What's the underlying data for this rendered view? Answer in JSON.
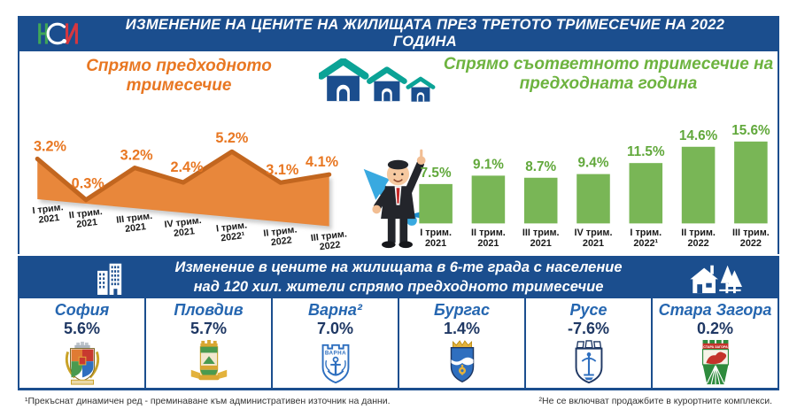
{
  "header": {
    "logo": "НСИ",
    "title": "ИЗМЕНЕНИЕ НА ЦЕНИТЕ НА ЖИЛИЩАТА ПРЕЗ ТРЕТОТО ТРИМЕСЕЧИЕ НА 2022 ГОДИНА"
  },
  "chart_data": [
    {
      "type": "area",
      "title": "Спрямо предходното тримесечие",
      "categories": [
        "I трим. 2021",
        "II трим. 2021",
        "III трим. 2021",
        "IV трим. 2021",
        "I трим. 2022¹",
        "II трим. 2022",
        "III трим. 2022"
      ],
      "values": [
        3.2,
        0.3,
        3.2,
        2.4,
        5.2,
        3.1,
        4.1
      ],
      "unit": "%",
      "ylim": [
        0,
        6
      ],
      "grid": false,
      "legend": false,
      "color": "#E8873B",
      "line_color": "#C2661F",
      "label_color": "#E87722",
      "title_color": "#E87722"
    },
    {
      "type": "bar",
      "title": "Спрямо съответното тримесечие на предходната година",
      "categories": [
        "I трим. 2021",
        "II трим. 2021",
        "III трим. 2021",
        "IV трим. 2021",
        "I трим. 2022¹",
        "II трим. 2022",
        "III трим. 2022"
      ],
      "values": [
        7.5,
        9.1,
        8.7,
        9.4,
        11.5,
        14.6,
        15.6
      ],
      "unit": "%",
      "ylim": [
        0,
        16
      ],
      "grid": false,
      "legend": false,
      "color": "#79B656",
      "label_color": "#61A83B",
      "title_color": "#6DB33F"
    }
  ],
  "banner": {
    "line1": "Изменение в цените на жилищата в 6-те града с население",
    "line2": "над 120 хил. жители спрямо предходното тримесечие"
  },
  "cities": [
    {
      "name": "София",
      "value": "5.6%"
    },
    {
      "name": "Пловдив",
      "value": "5.7%"
    },
    {
      "name": "Варна²",
      "value": "7.0%",
      "emblem_text": "ВАРНА"
    },
    {
      "name": "Бургас",
      "value": "1.4%"
    },
    {
      "name": "Русе",
      "value": "-7.6%"
    },
    {
      "name": "Стара Загора",
      "value": "0.2%",
      "emblem_text": "СТАРА ЗАГОРА"
    }
  ],
  "footnotes": {
    "left": "¹Прекъснат динамичен ред - преминаване към административен източник на данни.",
    "right": "²Не се включват продажбите в курортните комплекси."
  },
  "colors": {
    "header_blue": "#1B4E8E",
    "orange": "#E8873B",
    "green": "#79B656",
    "city_name_blue": "#2566B0",
    "value_navy": "#1F3864",
    "roof_teal": "#0BA396"
  }
}
